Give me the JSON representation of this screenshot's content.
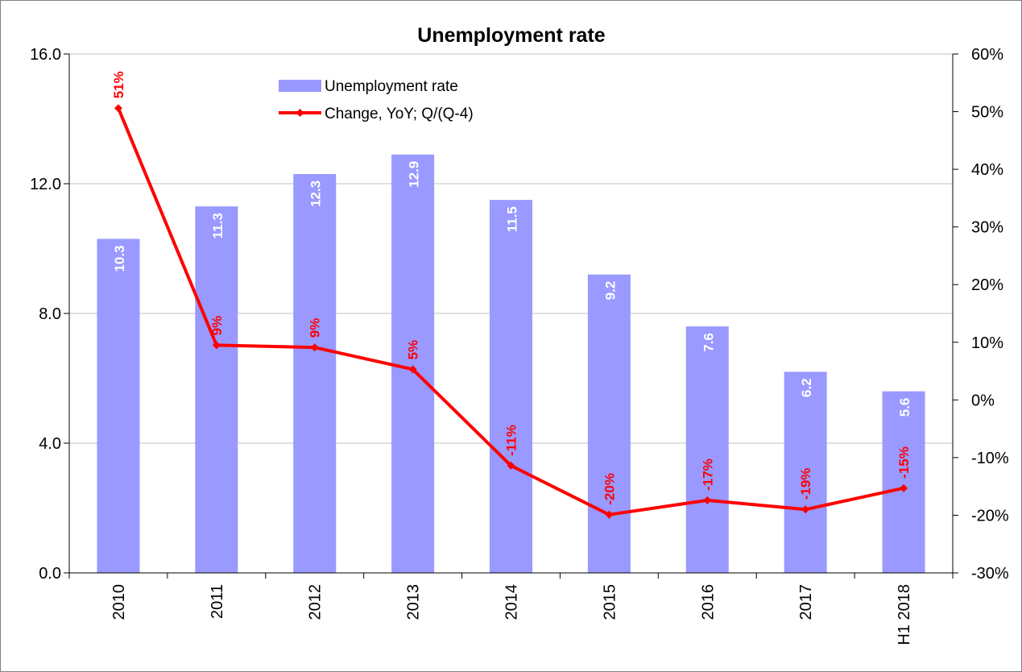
{
  "chart_data": {
    "type": "bar+line",
    "title": "Unemployment rate",
    "categories": [
      "2010",
      "2011",
      "2012",
      "2013",
      "2014",
      "2015",
      "2016",
      "2017",
      "H1 2018"
    ],
    "series": [
      {
        "name": "Unemployment rate",
        "type": "bar",
        "axis": "left",
        "values": [
          10.3,
          11.3,
          12.3,
          12.9,
          11.5,
          9.2,
          7.6,
          6.2,
          5.6
        ],
        "labels": [
          "10.3",
          "11.3",
          "12.3",
          "12.9",
          "11.5",
          "9.2",
          "7.6",
          "6.2",
          "5.6"
        ]
      },
      {
        "name": "Change, YoY; Q/(Q-4)",
        "type": "line",
        "axis": "right",
        "values": [
          50.6,
          9.5,
          9.1,
          5.3,
          -11.4,
          -19.9,
          -17.4,
          -19.0,
          -15.3
        ],
        "labels": [
          "51%",
          "9%",
          "9%",
          "5%",
          "-11%",
          "-20%",
          "-17%",
          "-19%",
          "-15%"
        ]
      }
    ],
    "y_left": {
      "min": 0,
      "max": 16,
      "ticks": [
        0,
        4,
        8,
        12,
        16
      ],
      "tick_labels": [
        "0.0",
        "4.0",
        "8.0",
        "12.0",
        "16.0"
      ]
    },
    "y_right": {
      "min": -30,
      "max": 60,
      "ticks": [
        -30,
        -20,
        -10,
        0,
        10,
        20,
        30,
        40,
        50,
        60
      ],
      "tick_labels": [
        "-30%",
        "-20%",
        "-10%",
        "0%",
        "10%",
        "20%",
        "30%",
        "40%",
        "50%",
        "60%"
      ]
    },
    "grid": true,
    "legend_position": "top-left-inside",
    "colors": {
      "bar": "#9999ff",
      "line": "#ff0000",
      "bar_label": "#ffffff",
      "line_label": "#ff0000",
      "grid": "#c0c0c0",
      "axis": "#000000"
    }
  }
}
